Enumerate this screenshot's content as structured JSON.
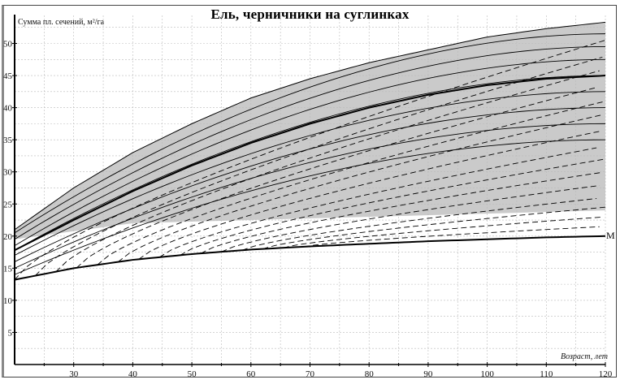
{
  "chart_data": {
    "type": "line",
    "title": "Ель, черничники на суглинках",
    "xlabel": "Возраст, лет",
    "ylabel": "Сумма пл. сечений, м²/га",
    "xlim": [
      20,
      120
    ],
    "ylim": [
      0,
      53
    ],
    "x_ticks": [
      30,
      40,
      50,
      60,
      70,
      80,
      90,
      100,
      110,
      120
    ],
    "y_ticks": [
      5,
      10,
      15,
      20,
      25,
      30,
      35,
      40,
      45,
      50
    ],
    "grid": true,
    "grid_style": "dotted",
    "shaded_band": {
      "description": "grey stippled zone between upper envelope and ~22 floor",
      "upper": {
        "x": [
          20,
          30,
          40,
          50,
          60,
          70,
          80,
          90,
          100,
          110,
          120
        ],
        "y": [
          21,
          27.5,
          33,
          37.5,
          41.5,
          44.5,
          47,
          49,
          51,
          52.3,
          53.3
        ]
      },
      "lower_y": 22
    },
    "series": [
      {
        "name": "upper-envelope",
        "style": "solid",
        "x": [
          20,
          30,
          40,
          50,
          60,
          70,
          80,
          90,
          100,
          110,
          120
        ],
        "y": [
          21,
          27.5,
          33,
          37.5,
          41.5,
          44.5,
          47,
          49,
          51,
          52.3,
          53.3
        ]
      },
      {
        "name": "mean-curve",
        "style": "bold",
        "x": [
          20,
          30,
          40,
          50,
          60,
          70,
          80,
          90,
          100,
          110,
          120
        ],
        "y": [
          17.8,
          22.5,
          27,
          31,
          34.5,
          37.5,
          40,
          42,
          43.5,
          44.5,
          45
        ]
      },
      {
        "name": "M",
        "style": "bold",
        "x": [
          20,
          30,
          40,
          50,
          60,
          70,
          80,
          90,
          100,
          110,
          120
        ],
        "y": [
          13.2,
          15,
          16.3,
          17.2,
          17.9,
          18.4,
          18.8,
          19.2,
          19.5,
          19.8,
          20
        ]
      }
    ],
    "solid_family_start_y": [
      20.5,
      19.5,
      18.5,
      17.8,
      17,
      16,
      15,
      14
    ],
    "solid_family_end_y": [
      51.5,
      49.5,
      47.5,
      45,
      42.5,
      40,
      37.5,
      35
    ],
    "dashed_family_end_y": [
      50.5,
      48,
      46,
      43.5,
      41,
      39,
      36.5,
      34,
      32,
      30,
      28,
      26,
      24.5,
      23,
      21.5
    ],
    "annotations": [
      {
        "text": "M",
        "x": 120,
        "y": 20
      }
    ]
  },
  "labels": {
    "title": "Ель, черничники на суглинках",
    "ylabel": "Сумма пл. сечений, м²/га",
    "xlabel": "Возраст, лет",
    "m_label": "M"
  },
  "colors": {
    "axis": "#000000",
    "grid": "#bbbbbb",
    "band": "#b8b8b8",
    "line": "#000000"
  }
}
